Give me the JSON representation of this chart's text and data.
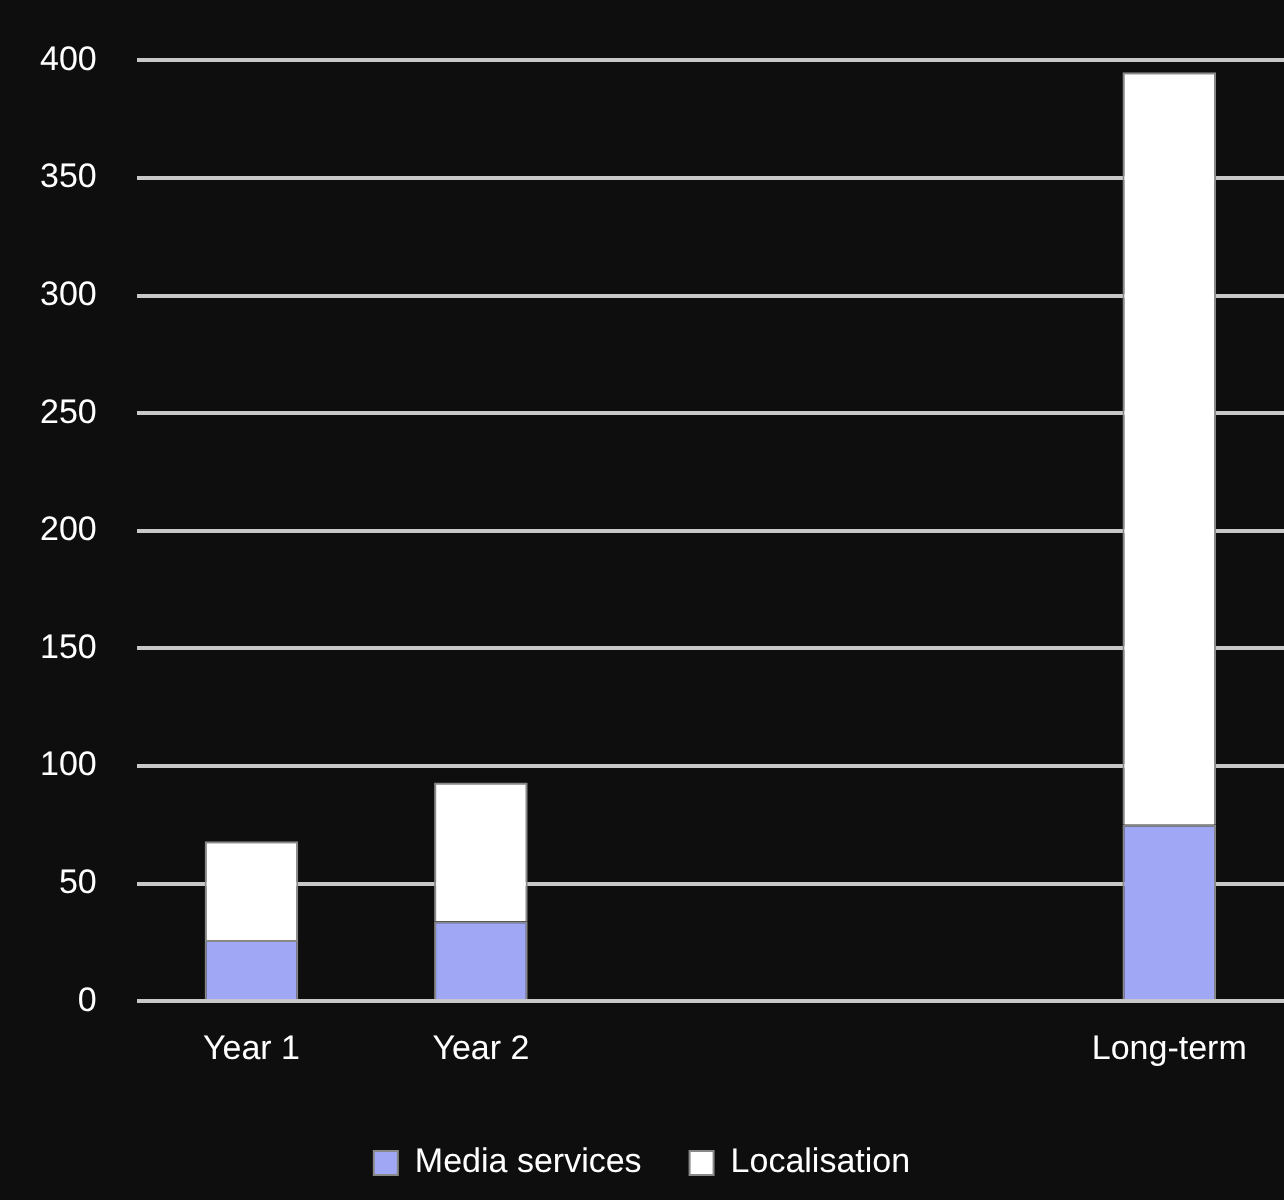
{
  "chart_data": {
    "type": "bar",
    "stacked": true,
    "categories": [
      "Year 1",
      "Year 2",
      null,
      null,
      "Long-term"
    ],
    "series": [
      {
        "name": "Media services",
        "color": "#a0a8f5",
        "values": [
          26,
          34,
          null,
          null,
          75
        ]
      },
      {
        "name": "Localisation",
        "color": "#ffffff",
        "values": [
          42,
          59,
          null,
          null,
          320
        ]
      }
    ],
    "ylim": [
      0,
      400
    ],
    "yticks": [
      0,
      50,
      100,
      150,
      200,
      250,
      300,
      350,
      400
    ],
    "grid": "y",
    "legend": "bottom"
  }
}
